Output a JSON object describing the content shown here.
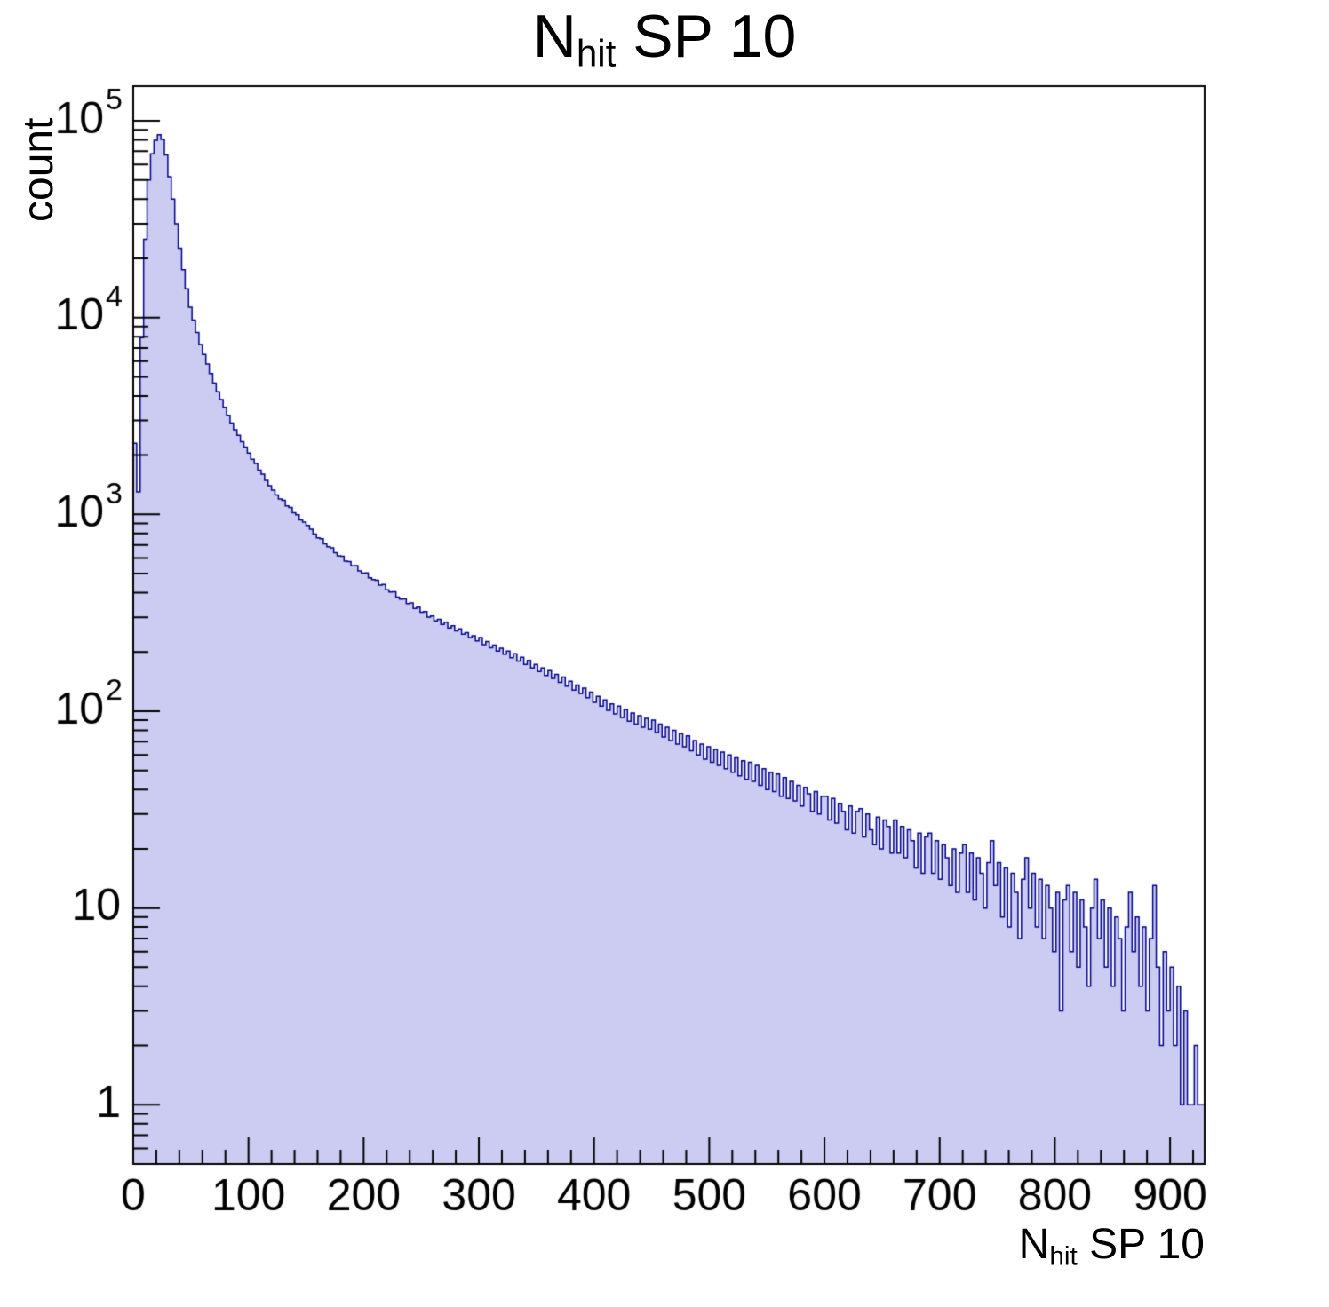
{
  "title": {
    "main": "N",
    "sub": "hit",
    "rest": " SP 10"
  },
  "y_axis": {
    "title": "count",
    "scale": "log",
    "min": 0.5,
    "max": 150000,
    "ticks": [
      {
        "value": 1,
        "base": "1",
        "exp": ""
      },
      {
        "value": 10,
        "base": "10",
        "exp": ""
      },
      {
        "value": 100,
        "base": "10",
        "exp": "2"
      },
      {
        "value": 1000,
        "base": "10",
        "exp": "3"
      },
      {
        "value": 10000,
        "base": "10",
        "exp": "4"
      },
      {
        "value": 100000,
        "base": "10",
        "exp": "5"
      }
    ]
  },
  "x_axis": {
    "title_main": "N",
    "title_sub": "hit",
    "title_rest": " SP 10",
    "min": 0,
    "max": 930,
    "minor_tick_step": 20,
    "ticks": [
      {
        "value": 0,
        "label": "0"
      },
      {
        "value": 100,
        "label": "100"
      },
      {
        "value": 200,
        "label": "200"
      },
      {
        "value": 300,
        "label": "300"
      },
      {
        "value": 400,
        "label": "400"
      },
      {
        "value": 500,
        "label": "500"
      },
      {
        "value": 600,
        "label": "600"
      },
      {
        "value": 700,
        "label": "700"
      },
      {
        "value": 800,
        "label": "800"
      },
      {
        "value": 900,
        "label": "900"
      }
    ]
  },
  "chart_data": {
    "type": "bar",
    "subtype": "histogram-step-filled",
    "title": "N_hit SP 10",
    "xlabel": "N_hit SP 10",
    "ylabel": "count",
    "yscale": "log",
    "xlim": [
      0,
      930
    ],
    "ylim": [
      0.5,
      150000
    ],
    "grid": false,
    "legend": "none",
    "x_start": 0,
    "bin_width": 3,
    "fill_color": "#ccccf2",
    "line_color": "#00008c",
    "values": [
      2300,
      1300,
      7900,
      25000,
      50000,
      68000,
      79500,
      85000,
      80500,
      67000,
      52000,
      40000,
      30000,
      22500,
      17500,
      14000,
      11300,
      9700,
      8400,
      7300,
      6500,
      5800,
      5200,
      4650,
      4200,
      3830,
      3500,
      3190,
      2910,
      2690,
      2522,
      2338,
      2201,
      2048,
      1905,
      1812,
      1678,
      1601,
      1488,
      1399,
      1330,
      1255,
      1198,
      1178,
      1105,
      1085,
      1019,
      995,
      938,
      915,
      880,
      842,
      795,
      760,
      752,
      708,
      685,
      676,
      638,
      616,
      612,
      578,
      575,
      548,
      549,
      516,
      503,
      504,
      476,
      466,
      463,
      437,
      440,
      414,
      403,
      404,
      380,
      371,
      372,
      352,
      355,
      333,
      338,
      318,
      321,
      301,
      305,
      288,
      293,
      276,
      283,
      265,
      272,
      256,
      262,
      246,
      251,
      237,
      242,
      228,
      237,
      218,
      226,
      210,
      217,
      202,
      209,
      195,
      202,
      187,
      196,
      180,
      188,
      173,
      181,
      166,
      173,
      159,
      166,
      152,
      161,
      147,
      154,
      140,
      149,
      134,
      142,
      128,
      136,
      123,
      131,
      117,
      125,
      111,
      119,
      106,
      114,
      101,
      109,
      97,
      106,
      93,
      102,
      89,
      98,
      86,
      95,
      83,
      92,
      81,
      90,
      78,
      86,
      74,
      83,
      71,
      80,
      68,
      77,
      66,
      75,
      63,
      71,
      60,
      68,
      57,
      66,
      55,
      64,
      53,
      62,
      51,
      60,
      49,
      58,
      47,
      56,
      45,
      55,
      44,
      53,
      42,
      51,
      40,
      49,
      39,
      48,
      37,
      46,
      36,
      44,
      35,
      42,
      33,
      41,
      38,
      31,
      39,
      30,
      37,
      37,
      28,
      36,
      27,
      34,
      31,
      25,
      33,
      24,
      31,
      32,
      23,
      30,
      25,
      21,
      29,
      20,
      28,
      26,
      19,
      28,
      19,
      26,
      18,
      25,
      22,
      16,
      24,
      15,
      23,
      24,
      15,
      22,
      14,
      21,
      18,
      13,
      20,
      12,
      19,
      21,
      12,
      19,
      11,
      18,
      15,
      10,
      17,
      22,
      13,
      17,
      9,
      16,
      8,
      15,
      12,
      7,
      14,
      18,
      10,
      15,
      8,
      14,
      7,
      13,
      10,
      6,
      12,
      3,
      11,
      13,
      6,
      12,
      5,
      11,
      8,
      4,
      10,
      14,
      7,
      11,
      5,
      10,
      4,
      9,
      7,
      3,
      8,
      12,
      6,
      9,
      4,
      8,
      3,
      7,
      13,
      5,
      2,
      6,
      3,
      5,
      2,
      4,
      1,
      3,
      1,
      1,
      2,
      1,
      1
    ]
  }
}
